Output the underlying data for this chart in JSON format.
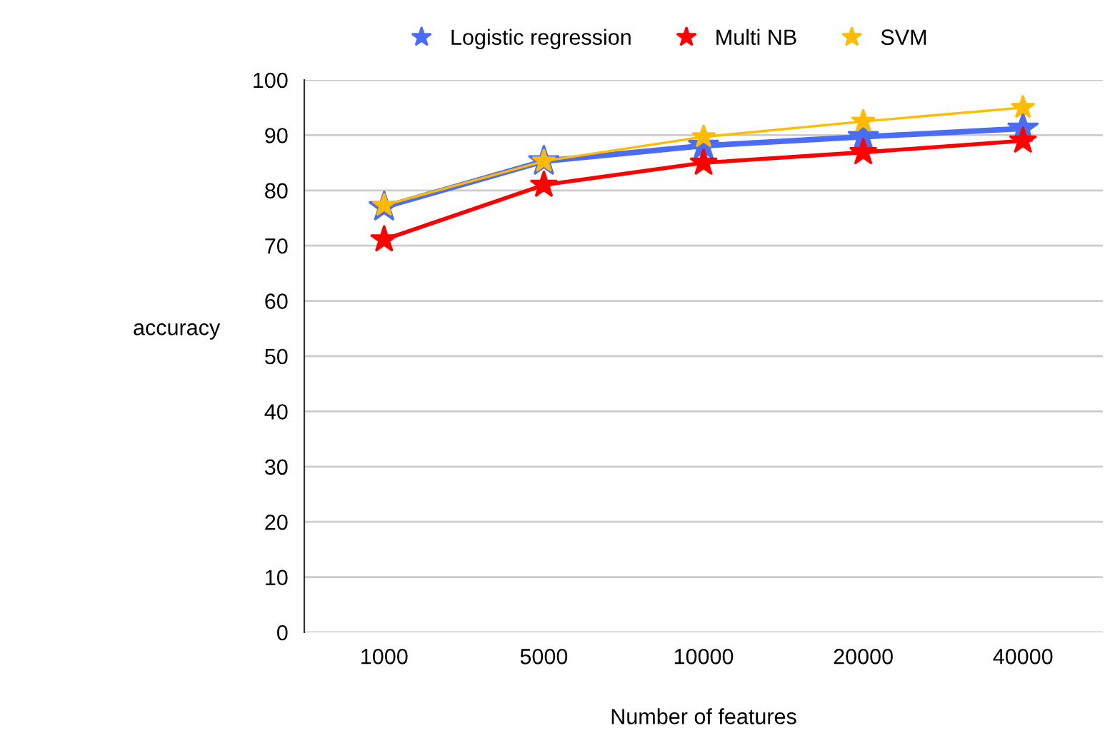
{
  "chart_data": {
    "type": "line",
    "xlabel": "Number of features",
    "ylabel": "accuracy",
    "categories": [
      "1000",
      "5000",
      "10000",
      "20000",
      "40000"
    ],
    "series": [
      {
        "name": "Logistic regression",
        "color": "#4a6cf7",
        "values": [
          77,
          85.3,
          88.1,
          89.7,
          91.2
        ]
      },
      {
        "name": "Multi NB",
        "color": "#ff0000",
        "values": [
          71.1,
          81,
          85,
          86.9,
          89
        ]
      },
      {
        "name": "SVM",
        "color": "#ffbb00",
        "values": [
          77.3,
          85.3,
          89.7,
          92.5,
          95
        ]
      }
    ],
    "ylim": [
      0,
      100
    ],
    "yticks": [
      0,
      10,
      20,
      30,
      40,
      50,
      60,
      70,
      80,
      90,
      100
    ],
    "grid": "y",
    "legend": "top",
    "marker": "star",
    "line_style": "solid"
  }
}
